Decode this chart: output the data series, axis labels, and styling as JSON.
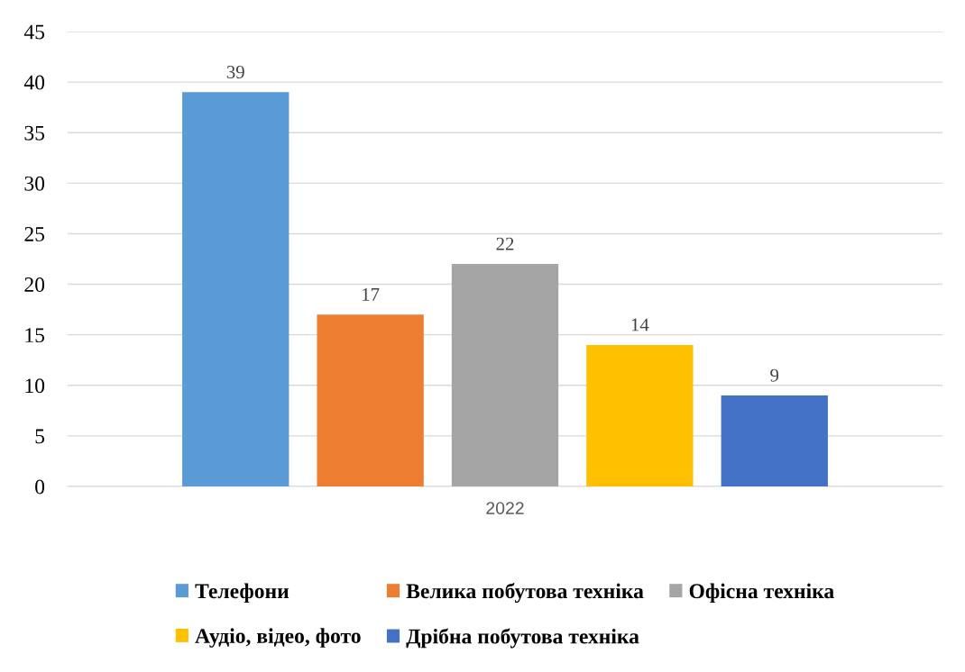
{
  "chart_data": {
    "type": "bar",
    "categories": [
      "2022"
    ],
    "series": [
      {
        "name": "Телефони",
        "color": "#5b9bd5",
        "values": [
          39
        ]
      },
      {
        "name": "Велика побутова техніка",
        "color": "#ed7d31",
        "values": [
          17
        ]
      },
      {
        "name": "Офісна техніка",
        "color": "#a5a5a5",
        "values": [
          22
        ]
      },
      {
        "name": "Аудіо, відео, фото",
        "color": "#ffc000",
        "values": [
          14
        ]
      },
      {
        "name": "Дрібна побутова техніка",
        "color": "#4472c4",
        "values": [
          9
        ]
      }
    ],
    "ylim": [
      0,
      45
    ],
    "yticks": [
      0,
      5,
      10,
      15,
      20,
      25,
      30,
      35,
      40,
      45
    ],
    "grid": "y",
    "legend": "bottom",
    "data_labels": true
  }
}
